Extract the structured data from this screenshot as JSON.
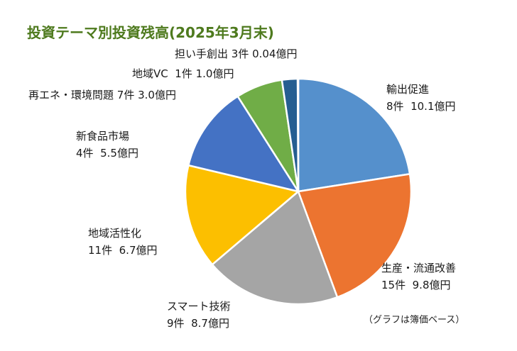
{
  "chart_data": {
    "type": "pie",
    "title": "投資テーマ別投資残高(2025年3月末)",
    "unit": "億円",
    "note": "（グラフは簿価ベース）",
    "slices": [
      {
        "name": "輸出促進",
        "count": 8,
        "count_text": "8件",
        "value": 10.1,
        "value_text": "10.1億円",
        "color": "#5590cc"
      },
      {
        "name": "生産・流通改善",
        "count": 15,
        "count_text": "15件",
        "value": 9.8,
        "value_text": "9.8億円",
        "color": "#ec7430"
      },
      {
        "name": "スマート技術",
        "count": 9,
        "count_text": "9件",
        "value": 8.7,
        "value_text": "8.7億円",
        "color": "#a5a5a5"
      },
      {
        "name": "地域活性化",
        "count": 11,
        "count_text": "11件",
        "value": 6.7,
        "value_text": "6.7億円",
        "color": "#fcbf00"
      },
      {
        "name": "新食品市場",
        "count": 4,
        "count_text": "4件",
        "value": 5.5,
        "value_text": "5.5億円",
        "color": "#4472c4"
      },
      {
        "name": "再エネ・環境問題",
        "count": 7,
        "count_text": "7件",
        "value": 3.0,
        "value_text": "3.0億円",
        "color": "#70ad47"
      },
      {
        "name": "地域VC",
        "count": 1,
        "count_text": "1件",
        "value": 1.0,
        "value_text": "1.0億円",
        "color": "#255e91"
      },
      {
        "name": "担い手創出",
        "count": 3,
        "count_text": "3件",
        "value": 0.04,
        "value_text": "0.04億円",
        "color": "#264478"
      }
    ]
  }
}
